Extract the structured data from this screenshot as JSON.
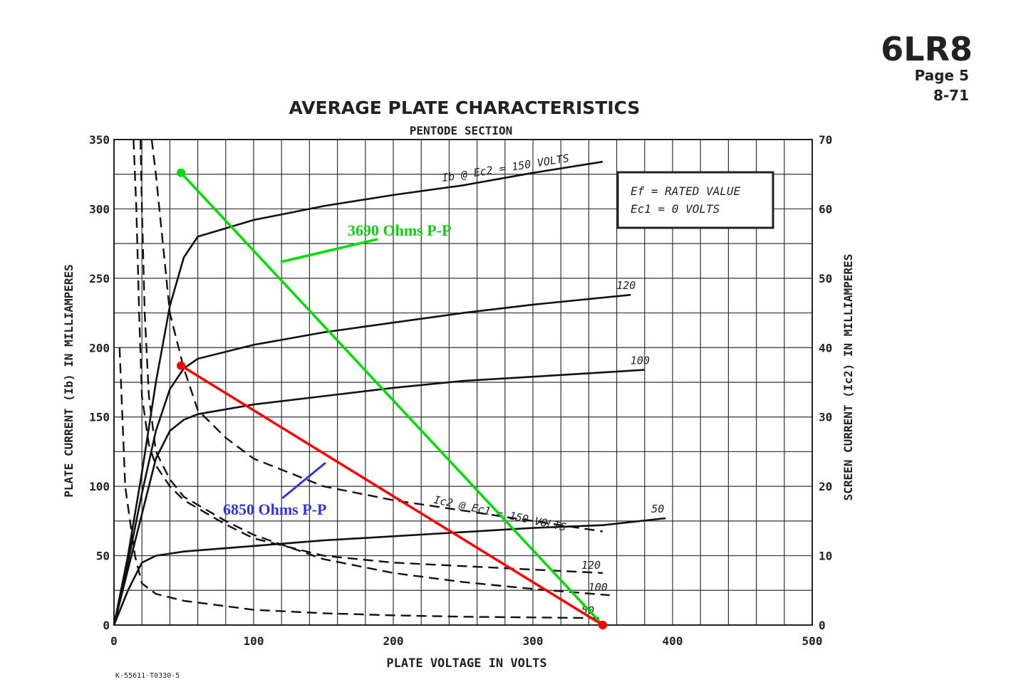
{
  "header": {
    "tube": "6LR8",
    "page": "Page 5",
    "date": "8-71"
  },
  "footer": {
    "drawing_number": "K-55611-T0330-5"
  },
  "chart_data": {
    "type": "line",
    "title": "AVERAGE PLATE CHARACTERISTICS",
    "subtitle": "PENTODE SECTION",
    "xlabel": "PLATE VOLTAGE IN VOLTS",
    "ylabel": "PLATE CURRENT (Ib) IN MILLIAMPERES",
    "y2label": "SCREEN CURRENT (Ic2) IN MILLIAMPERES",
    "xlim": [
      0,
      500
    ],
    "ylim": [
      0,
      350
    ],
    "y2lim": [
      0,
      70
    ],
    "xticks": [
      "0",
      "100",
      "200",
      "300",
      "400",
      "500"
    ],
    "yticks": [
      "0",
      "50",
      "100",
      "150",
      "200",
      "250",
      "300",
      "350"
    ],
    "y2ticks": [
      "0",
      "10",
      "20",
      "30",
      "40",
      "50",
      "60",
      "70"
    ],
    "grid": true,
    "conditions": [
      "Ef = RATED VALUE",
      "Ec1 = 0 VOLTS"
    ],
    "series_plate": [
      {
        "name": "Ib @ Ec2 = 150 VOLTS",
        "label": "Ib @ Ec2 = 150 VOLTS",
        "points": [
          [
            0,
            0
          ],
          [
            10,
            50
          ],
          [
            20,
            110
          ],
          [
            30,
            175
          ],
          [
            40,
            230
          ],
          [
            50,
            265
          ],
          [
            60,
            280
          ],
          [
            100,
            292
          ],
          [
            150,
            302
          ],
          [
            200,
            310
          ],
          [
            250,
            317
          ],
          [
            300,
            326
          ],
          [
            350,
            334
          ]
        ]
      },
      {
        "name": "120",
        "label": "120",
        "points": [
          [
            0,
            0
          ],
          [
            10,
            45
          ],
          [
            20,
            95
          ],
          [
            30,
            140
          ],
          [
            40,
            170
          ],
          [
            50,
            185
          ],
          [
            60,
            192
          ],
          [
            100,
            202
          ],
          [
            150,
            211
          ],
          [
            200,
            218
          ],
          [
            250,
            225
          ],
          [
            300,
            231
          ],
          [
            370,
            238
          ]
        ]
      },
      {
        "name": "100",
        "label": "100",
        "points": [
          [
            0,
            0
          ],
          [
            10,
            40
          ],
          [
            20,
            80
          ],
          [
            30,
            120
          ],
          [
            40,
            140
          ],
          [
            50,
            148
          ],
          [
            60,
            152
          ],
          [
            100,
            159
          ],
          [
            150,
            165
          ],
          [
            200,
            171
          ],
          [
            250,
            176
          ],
          [
            300,
            179
          ],
          [
            380,
            184
          ]
        ]
      },
      {
        "name": "50",
        "label": "50",
        "points": [
          [
            0,
            0
          ],
          [
            10,
            25
          ],
          [
            20,
            45
          ],
          [
            30,
            50
          ],
          [
            50,
            53
          ],
          [
            100,
            57
          ],
          [
            150,
            61
          ],
          [
            200,
            64
          ],
          [
            250,
            67
          ],
          [
            300,
            70
          ],
          [
            350,
            72
          ],
          [
            395,
            77
          ]
        ]
      }
    ],
    "series_screen": [
      {
        "name": "Ic2 @ Ec1 = 150 VOLTS",
        "label": "Ic2 @ Ec1 = 150 VOLTS",
        "points": [
          [
            27,
            70
          ],
          [
            30,
            65
          ],
          [
            35,
            55
          ],
          [
            40,
            45
          ],
          [
            50,
            37
          ],
          [
            60,
            31
          ],
          [
            80,
            27
          ],
          [
            100,
            24
          ],
          [
            150,
            20
          ],
          [
            200,
            18
          ],
          [
            250,
            16.5
          ],
          [
            300,
            15
          ],
          [
            350,
            13.5
          ]
        ]
      },
      {
        "name": "120",
        "label": "120",
        "points": [
          [
            14,
            70
          ],
          [
            16,
            60
          ],
          [
            18,
            45
          ],
          [
            20,
            33
          ],
          [
            25,
            26
          ],
          [
            30,
            23
          ],
          [
            40,
            20
          ],
          [
            50,
            18
          ],
          [
            80,
            14.5
          ],
          [
            100,
            12.5
          ],
          [
            150,
            10
          ],
          [
            200,
            9
          ],
          [
            250,
            8.5
          ],
          [
            300,
            8
          ],
          [
            350,
            7.5
          ]
        ]
      },
      {
        "name": "100",
        "label": "100",
        "points": [
          [
            19,
            70
          ],
          [
            20,
            60
          ],
          [
            22,
            45
          ],
          [
            25,
            33
          ],
          [
            30,
            25
          ],
          [
            40,
            21
          ],
          [
            50,
            18.5
          ],
          [
            80,
            15
          ],
          [
            100,
            13
          ],
          [
            150,
            9.5
          ],
          [
            200,
            7.5
          ],
          [
            250,
            6.2
          ],
          [
            300,
            5.2
          ],
          [
            355,
            4.3
          ]
        ]
      },
      {
        "name": "50",
        "label": "50",
        "points": [
          [
            4,
            40
          ],
          [
            6,
            30
          ],
          [
            8,
            20
          ],
          [
            15,
            10
          ],
          [
            20,
            6
          ],
          [
            30,
            4.5
          ],
          [
            50,
            3.5
          ],
          [
            100,
            2.2
          ],
          [
            150,
            1.7
          ],
          [
            200,
            1.4
          ],
          [
            250,
            1.2
          ],
          [
            300,
            1.1
          ],
          [
            350,
            1
          ]
        ]
      }
    ],
    "load_lines": [
      {
        "name": "3690 Ohms P-P",
        "label": "3690 Ohms P-P",
        "color": "#00dd00",
        "points": [
          [
            48,
            326
          ],
          [
            350,
            0
          ]
        ]
      },
      {
        "name": "6850 Ohms P-P",
        "label": "6850 Ohms P-P",
        "color": "#ff0000",
        "label_color": "#3333dd",
        "points": [
          [
            48,
            187
          ],
          [
            350,
            0
          ]
        ]
      }
    ]
  }
}
